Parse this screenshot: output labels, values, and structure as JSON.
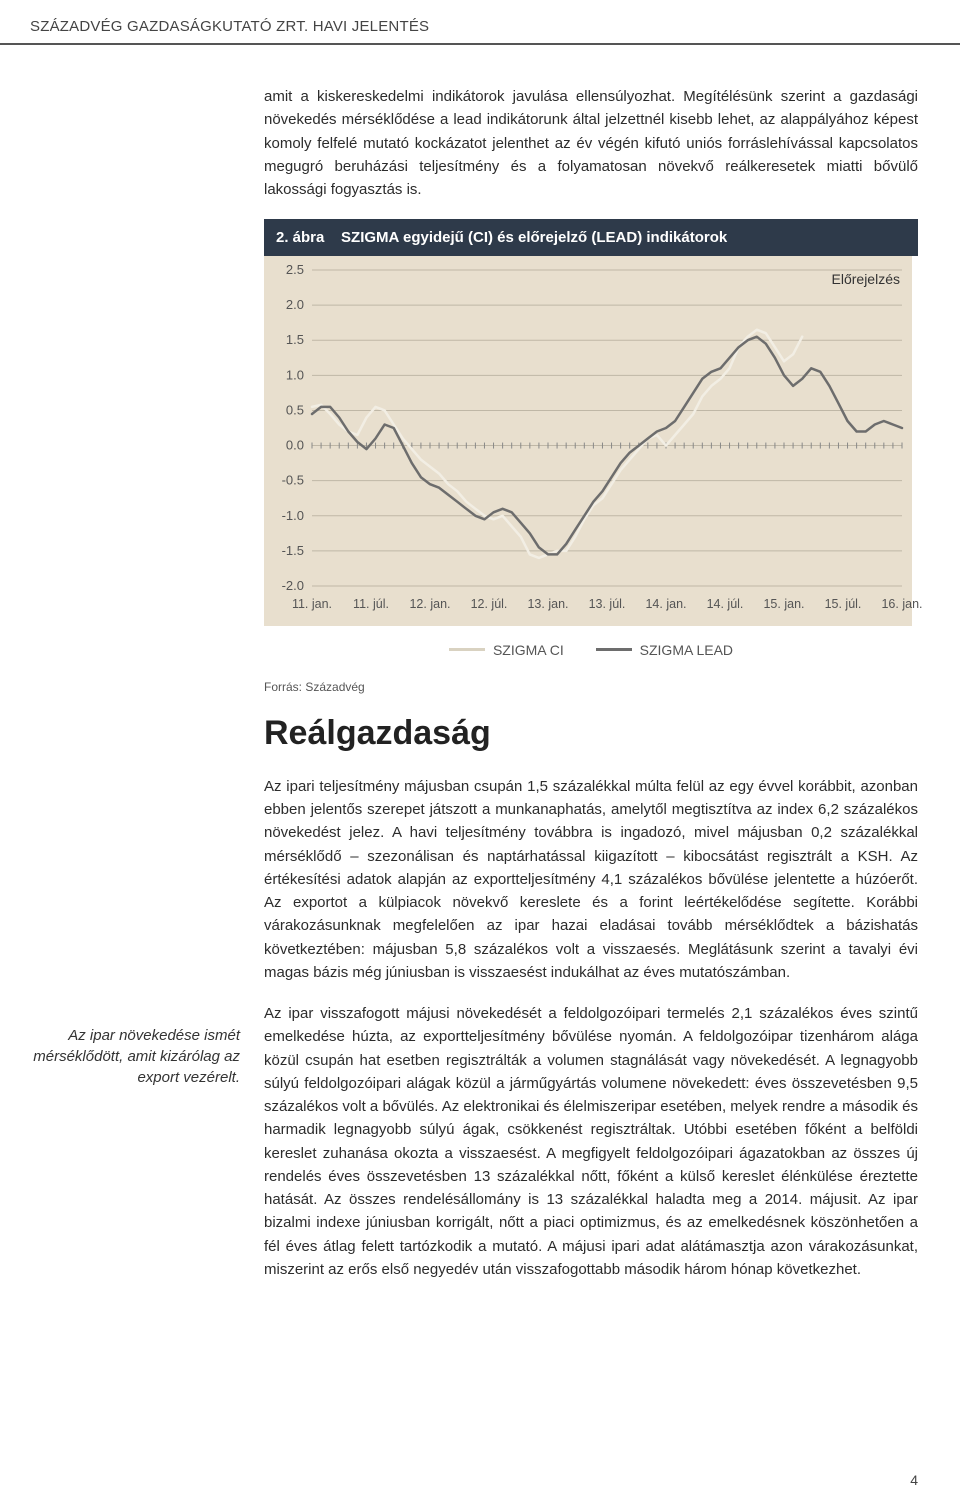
{
  "header": {
    "title": "SZÁZADVÉG GAZDASÁGKUTATÓ ZRT. HAVI JELENTÉS"
  },
  "intro_para": "amit a kiskereskedelmi indikátorok javulása ellensúlyozhat. Megítélésünk szerint a gazdasági növekedés mérséklődése a lead indikátorunk által jelzettnél kisebb lehet, az alappályához képest komoly felfelé mutató kockázatot jelenthet az év végén kifutó uniós forráslehívással kapcsolatos megugró beruházási teljesítmény és a folyamatosan növekvő reálkeresetek miatti bővülő lakossági fogyasztás is.",
  "figure": {
    "caption_prefix": "2. ábra",
    "caption_title": "SZIGMA egyidejű (CI) és előrejelző (LEAD) indikátorok",
    "annotation": "Előrejelzés",
    "background_color": "#e8dfce",
    "grid_color": "#bfb7a6",
    "axis_color": "#555555",
    "ylim": [
      -2.0,
      2.5
    ],
    "ytick_step": 0.5,
    "yticks": [
      "2.5",
      "2.0",
      "1.5",
      "1.0",
      "0.5",
      "0.0",
      "-0.5",
      "-1.0",
      "-1.5",
      "-2.0"
    ],
    "xticks": [
      "11. jan.",
      "11. júl.",
      "12. jan.",
      "12. júl.",
      "13. jan.",
      "13. júl.",
      "14. jan.",
      "14. júl.",
      "15. jan.",
      "15. júl.",
      "16. jan."
    ],
    "x_count": 66,
    "forecast_start_index": 55,
    "series": [
      {
        "name": "SZIGMA CI",
        "color": "#f2eee4",
        "line_width": 2.5,
        "values": [
          0.55,
          0.58,
          0.45,
          0.3,
          0.2,
          0.15,
          0.4,
          0.55,
          0.5,
          0.3,
          0.1,
          -0.05,
          -0.2,
          -0.3,
          -0.4,
          -0.55,
          -0.65,
          -0.8,
          -0.9,
          -1.0,
          -1.05,
          -1.0,
          -1.15,
          -1.3,
          -1.55,
          -1.6,
          -1.55,
          -1.5,
          -1.5,
          -1.3,
          -1.05,
          -0.85,
          -0.75,
          -0.55,
          -0.35,
          -0.2,
          -0.05,
          0.1,
          0.15,
          0.0,
          0.15,
          0.3,
          0.45,
          0.7,
          0.85,
          0.95,
          1.1,
          1.4,
          1.55,
          1.65,
          1.6,
          1.4,
          1.2,
          1.3,
          1.55
        ]
      },
      {
        "name": "SZIGMA LEAD",
        "color": "#6d6d6d",
        "line_width": 2.5,
        "values": [
          0.45,
          0.55,
          0.55,
          0.4,
          0.2,
          0.05,
          -0.05,
          0.1,
          0.3,
          0.25,
          0.0,
          -0.25,
          -0.45,
          -0.55,
          -0.6,
          -0.7,
          -0.8,
          -0.9,
          -1.0,
          -1.05,
          -0.95,
          -0.9,
          -0.95,
          -1.1,
          -1.25,
          -1.45,
          -1.55,
          -1.55,
          -1.4,
          -1.2,
          -1.0,
          -0.8,
          -0.65,
          -0.45,
          -0.25,
          -0.1,
          0.0,
          0.1,
          0.2,
          0.25,
          0.35,
          0.55,
          0.75,
          0.95,
          1.05,
          1.1,
          1.25,
          1.4,
          1.5,
          1.55,
          1.45,
          1.25,
          1.0,
          0.85,
          0.95,
          1.1,
          1.05,
          0.85,
          0.6,
          0.35,
          0.2,
          0.2,
          0.3,
          0.35,
          0.3,
          0.25
        ]
      }
    ],
    "legend": [
      {
        "label": "SZIGMA CI",
        "color": "#d9d2c1"
      },
      {
        "label": "SZIGMA LEAD",
        "color": "#6d6d6d"
      }
    ]
  },
  "source_label": "Forrás: Századvég",
  "section_heading": "Reálgazdaság",
  "sidebar_note": "Az ipar növekedése ismét mérséklődött, amit kizárólag az export vezérelt.",
  "body_para_1": "Az ipari teljesítmény májusban csupán 1,5 százalékkal múlta felül az egy évvel korábbit, azonban ebben jelentős szerepet játszott a munkanaphatás, amelytől megtisztítva az index 6,2 százalékos növekedést jelez. A havi teljesítmény továbbra is ingadozó, mivel májusban 0,2 százalékkal mérséklődő – szezonálisan és naptárhatással kiigazított – kibocsátást regisztrált a KSH. Az értékesítési adatok alapján az exportteljesítmény 4,1 százalékos bővülése jelentette a húzóerőt. Az exportot a külpiacok növekvő kereslete és a forint leértékelődése segítette. Korábbi várakozásunknak megfelelően az ipar hazai eladásai tovább mérséklődtek a bázishatás következtében: májusban 5,8 százalékos volt a visszaesés. Meglátásunk szerint a tavalyi évi magas bázis még júniusban is visszaesést indukálhat az éves mutatószámban.",
  "body_para_2": "Az ipar visszafogott májusi növekedését a feldolgozóipari termelés 2,1 százalékos éves szintű emelkedése húzta, az exportteljesítmény bővülése nyomán. A feldolgozóipar tizenhárom alága közül csupán hat esetben regisztrálták a volumen stagnálását vagy növekedését. A legnagyobb súlyú feldolgozóipari alágak közül a járműgyártás volumene növekedett: éves összevetésben 9,5 százalékos volt a bővülés. Az elektronikai és élelmiszeripar esetében, melyek rendre a második és harmadik legnagyobb súlyú ágak, csökkenést regisztráltak. Utóbbi esetében főként a belföldi kereslet zuhanása okozta a visszaesést. A megfigyelt feldolgozóipari ágazatokban az összes új rendelés éves összevetésben 13 százalékkal nőtt, főként a külső kereslet élénkülése éreztette hatását. Az összes rendelésállomány is 13 százalékkal haladta meg a 2014. májusit. Az ipar bizalmi indexe júniusban korrigált, nőtt a piaci optimizmus, és az emelkedésnek köszönhetően a fél éves átlag felett tartózkodik a mutató. A májusi ipari adat alátámasztja azon várakozásunkat, miszerint az erős első negyedév után visszafogottabb második három hónap következhet.",
  "page_number": "4"
}
